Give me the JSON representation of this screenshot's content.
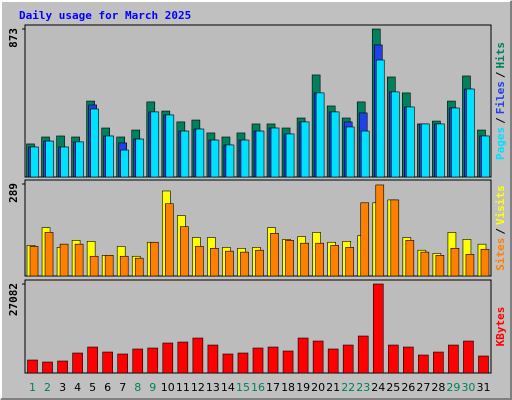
{
  "title": "Daily usage for March 2025",
  "legend_separator": "/",
  "chart_data": [
    {
      "type": "bar",
      "ylim": [
        0,
        873
      ],
      "yticks": [
        873
      ],
      "series": [
        {
          "name": "Hits",
          "color": "#00805c",
          "values": [
            195,
            236,
            242,
            236,
            448,
            289,
            236,
            277,
            443,
            389,
            325,
            336,
            260,
            236,
            260,
            313,
            313,
            289,
            348,
            602,
            419,
            348,
            443,
            873,
            590,
            496,
            313,
            330,
            448,
            596,
            277
          ]
        },
        {
          "name": "Files",
          "color": "#2040e8",
          "values": [
            177,
            212,
            177,
            207,
            425,
            242,
            201,
            224,
            384,
            366,
            271,
            283,
            218,
            189,
            218,
            271,
            289,
            254,
            325,
            496,
            384,
            325,
            378,
            779,
            502,
            413,
            313,
            313,
            407,
            519,
            242
          ]
        },
        {
          "name": "Pages",
          "color": "#00e0ff",
          "values": [
            177,
            212,
            177,
            207,
            401,
            242,
            159,
            224,
            384,
            366,
            271,
            283,
            218,
            189,
            218,
            271,
            289,
            254,
            325,
            496,
            384,
            295,
            271,
            690,
            502,
            413,
            313,
            313,
            407,
            519,
            242
          ]
        }
      ]
    },
    {
      "type": "bar",
      "ylim": [
        0,
        289
      ],
      "yticks": [
        289
      ],
      "series": [
        {
          "name": "Visits",
          "color": "#ffff00",
          "values": [
            96,
            152,
            90,
            112,
            109,
            65,
            93,
            62,
            106,
            267,
            190,
            121,
            121,
            90,
            87,
            90,
            152,
            115,
            124,
            137,
            106,
            109,
            127,
            230,
            239,
            121,
            81,
            71,
            137,
            115,
            100
          ]
        },
        {
          "name": "Sites",
          "color": "#ff8000",
          "values": [
            93,
            137,
            100,
            100,
            62,
            65,
            62,
            56,
            106,
            227,
            155,
            93,
            87,
            78,
            75,
            81,
            134,
            112,
            103,
            103,
            96,
            90,
            230,
            286,
            239,
            112,
            75,
            65,
            87,
            68,
            84
          ]
        }
      ]
    },
    {
      "type": "bar",
      "ylim": [
        0,
        27082
      ],
      "yticks": [
        27082
      ],
      "categories": [
        "1",
        "2",
        "3",
        "4",
        "5",
        "6",
        "7",
        "8",
        "9",
        "10",
        "11",
        "12",
        "13",
        "14",
        "15",
        "16",
        "17",
        "18",
        "19",
        "20",
        "21",
        "22",
        "23",
        "24",
        "25",
        "26",
        "27",
        "28",
        "29",
        "30",
        "31"
      ],
      "category_colors": [
        "#00805c",
        "#00805c",
        "#000000",
        "#000000",
        "#000000",
        "#000000",
        "#000000",
        "#00805c",
        "#00805c",
        "#000000",
        "#000000",
        "#000000",
        "#000000",
        "#000000",
        "#00805c",
        "#00805c",
        "#000000",
        "#000000",
        "#000000",
        "#000000",
        "#000000",
        "#00805c",
        "#00805c",
        "#000000",
        "#000000",
        "#000000",
        "#000000",
        "#000000",
        "#00805c",
        "#00805c",
        "#000000"
      ],
      "series": [
        {
          "name": "KBytes",
          "color": "#ff0000",
          "values": [
            3950,
            3340,
            3650,
            6080,
            7900,
            6380,
            5780,
            7300,
            7600,
            9120,
            9420,
            10640,
            8510,
            5780,
            6080,
            7600,
            7900,
            6690,
            10640,
            9730,
            7300,
            8510,
            11250,
            27082,
            8510,
            7900,
            5470,
            6380,
            8510,
            9730,
            5170
          ]
        }
      ]
    }
  ]
}
